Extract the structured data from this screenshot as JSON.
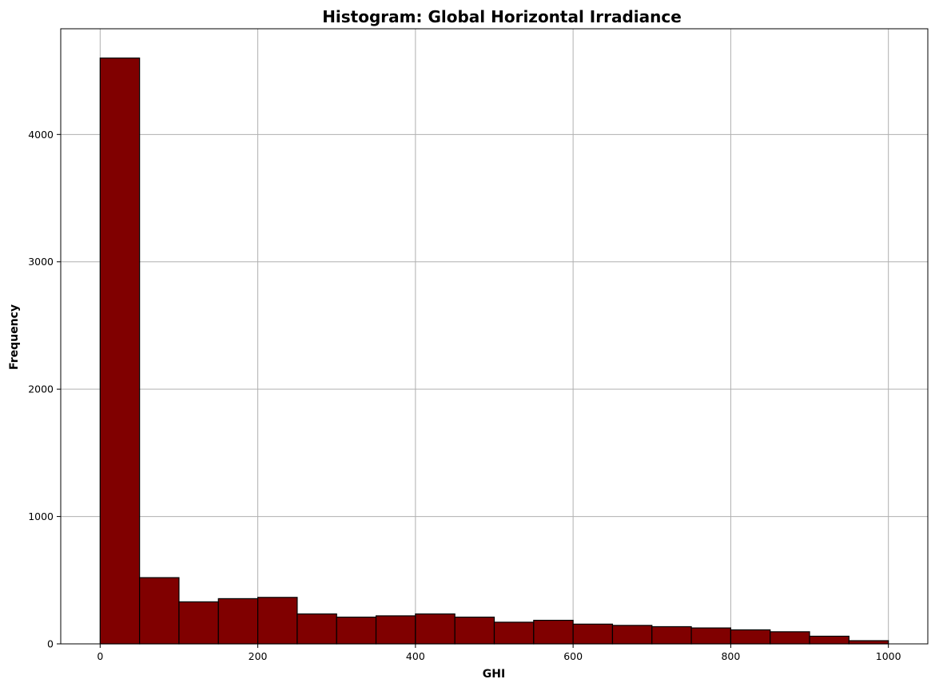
{
  "chart_data": {
    "type": "bar",
    "title": "Histogram: Global Horizontal Irradiance",
    "xlabel": "GHI",
    "ylabel": "Frequency",
    "bin_edges": [
      0,
      50,
      100,
      150,
      200,
      250,
      300,
      350,
      400,
      450,
      500,
      550,
      600,
      650,
      700,
      750,
      800,
      850,
      900,
      950,
      1000
    ],
    "values": [
      4600,
      520,
      330,
      355,
      365,
      235,
      210,
      220,
      235,
      210,
      170,
      185,
      155,
      145,
      135,
      125,
      110,
      95,
      60,
      25
    ],
    "xlim": [
      -50,
      1050
    ],
    "ylim": [
      0,
      4830
    ],
    "xticks": [
      0,
      200,
      400,
      600,
      800,
      1000
    ],
    "yticks": [
      0,
      1000,
      2000,
      3000,
      4000
    ],
    "grid": true,
    "bar_color": "#800000",
    "edge_color": "#000000"
  }
}
